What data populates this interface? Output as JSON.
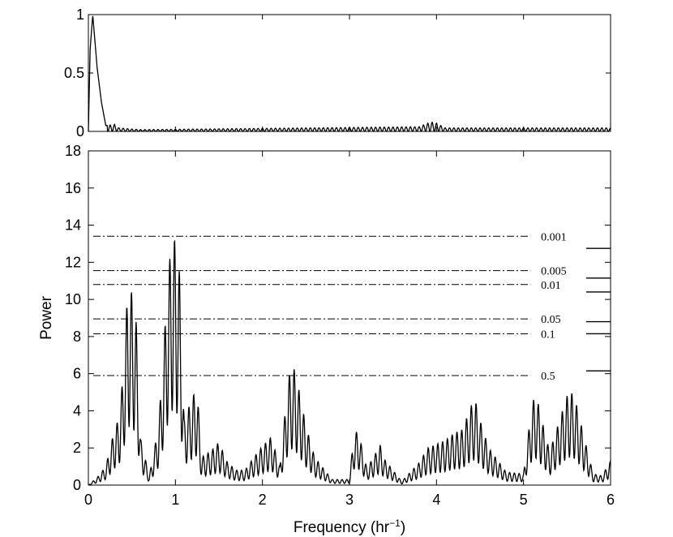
{
  "chart_data": [
    {
      "type": "line",
      "panel": "window-function",
      "xlim": [
        0,
        6
      ],
      "ylim": [
        0,
        1
      ],
      "x_ticks": [],
      "y_ticks": [
        "0",
        "0.5",
        "1"
      ],
      "series": [
        {
          "x": [
            0.02,
            0.05,
            0.1,
            0.15,
            0.2,
            0.3,
            0.35,
            0.5,
            0.6,
            3.8,
            3.9,
            3.95,
            4.0,
            4.1
          ],
          "values": [
            0.7,
            1.0,
            0.55,
            0.25,
            0.05,
            0.06,
            0.03,
            0.02,
            0.015,
            0.04,
            0.07,
            0.08,
            0.07,
            0.03
          ]
        }
      ]
    },
    {
      "type": "line",
      "panel": "periodogram",
      "xlabel": "Frequency (hr",
      "xlabel_superscript": "−1",
      "xlabel_suffix": ")",
      "ylabel": "Power",
      "xlim": [
        0,
        6
      ],
      "ylim": [
        0,
        18
      ],
      "x_ticks": [
        "0",
        "1",
        "2",
        "3",
        "4",
        "5",
        "6"
      ],
      "y_ticks": [
        "0",
        "2",
        "4",
        "6",
        "8",
        "10",
        "12",
        "14",
        "16",
        "18"
      ],
      "grid": false,
      "series": [
        {
          "x": [
            0.1,
            0.2,
            0.3,
            0.35,
            0.4,
            0.45,
            0.5,
            0.55,
            0.6,
            0.7,
            0.8,
            0.85,
            0.9,
            0.95,
            1.0,
            1.05,
            1.1,
            1.2,
            1.25,
            1.3,
            1.4,
            1.5,
            1.6,
            1.7,
            1.8,
            1.9,
            2.0,
            2.1,
            2.2,
            2.3,
            2.35,
            2.4,
            2.5,
            2.6,
            2.8,
            3.0,
            3.05,
            3.1,
            3.2,
            3.3,
            3.35,
            3.4,
            3.6,
            3.8,
            3.9,
            4.0,
            4.1,
            4.2,
            4.3,
            4.4,
            4.45,
            4.5,
            4.6,
            4.8,
            5.0,
            5.1,
            5.15,
            5.2,
            5.3,
            5.4,
            5.5,
            5.55,
            5.6,
            5.7,
            5.8,
            5.9,
            6.0
          ],
          "values": [
            0.4,
            1.0,
            3.0,
            3.6,
            6.0,
            10.4,
            10.4,
            8.8,
            2.5,
            0.5,
            3.0,
            6.0,
            10.2,
            13.0,
            13.3,
            11.3,
            3.5,
            4.8,
            5.2,
            1.5,
            1.8,
            2.3,
            1.2,
            0.8,
            0.8,
            1.5,
            2.1,
            2.6,
            1.0,
            5.8,
            6.5,
            5.6,
            3.2,
            1.5,
            0.3,
            0.3,
            2.8,
            2.9,
            0.9,
            1.7,
            2.2,
            1.4,
            0.2,
            1.2,
            2.0,
            2.2,
            2.4,
            2.8,
            3.0,
            4.3,
            4.5,
            3.5,
            2.0,
            0.7,
            0.6,
            4.5,
            4.8,
            3.7,
            1.8,
            3.3,
            4.8,
            5.0,
            4.5,
            2.5,
            0.6,
            0.5,
            1.3
          ]
        }
      ],
      "annotations": [
        {
          "label": "0.001",
          "y": 13.4
        },
        {
          "label": "0.005",
          "y": 11.55
        },
        {
          "label": "0.01",
          "y": 10.8
        },
        {
          "label": "0.05",
          "y": 8.95
        },
        {
          "label": "0.1",
          "y": 8.15
        },
        {
          "label": "0.5",
          "y": 5.9
        }
      ],
      "right_markers": [
        12.75,
        11.15,
        10.4,
        8.8,
        8.15,
        6.15
      ]
    }
  ]
}
